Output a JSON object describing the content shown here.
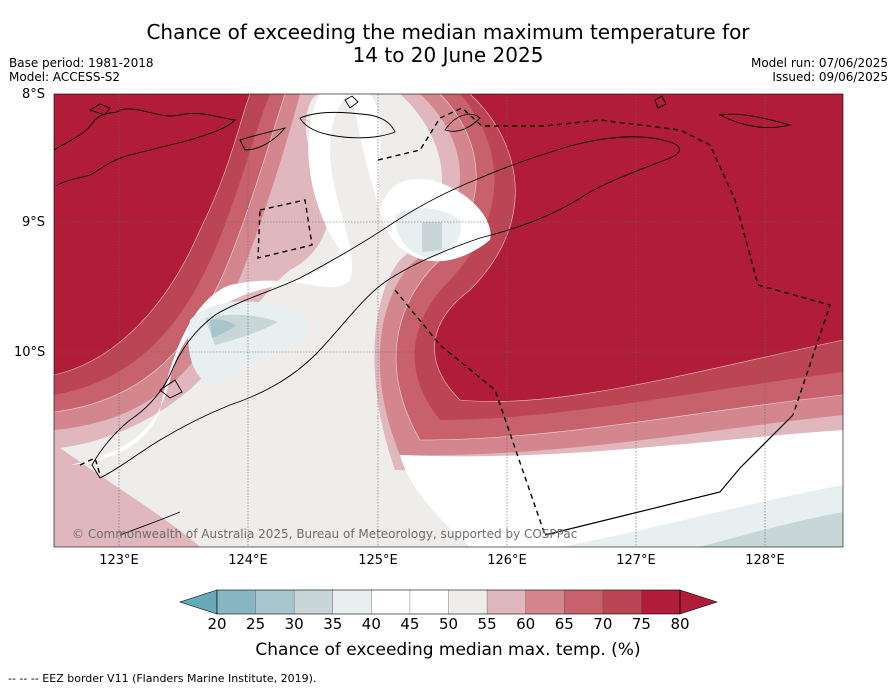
{
  "title_line1": "Chance of exceeding the median maximum temperature for",
  "title_line2": "14 to 20 June 2025",
  "base_period": "Base period: 1981-2018",
  "model": "Model: ACCESS-S2",
  "model_run": "Model run: 07/06/2025",
  "issued": "Issued: 09/06/2025",
  "latitude_labels": [
    "8°S",
    "9°S",
    "10°S"
  ],
  "longitude_labels": [
    "123°E",
    "124°E",
    "125°E",
    "126°E",
    "127°E",
    "128°E"
  ],
  "copyright": "© Commonwealth of Australia 2025, Bureau of Meteorology, supported by COSPPac",
  "colorbar": {
    "title": "Chance of exceeding median max. temp. (%)",
    "ticks": [
      "20",
      "25",
      "30",
      "35",
      "40",
      "45",
      "50",
      "55",
      "60",
      "65",
      "70",
      "75",
      "80"
    ],
    "colors": [
      "#66aab8",
      "#88b5c2",
      "#a7c6cc",
      "#c9d6d8",
      "#e8eff1",
      "#ffffff",
      "#ffffff",
      "#efedeb",
      "#e1b7be",
      "#d4868f",
      "#c7626d",
      "#bc4553",
      "#b11c38"
    ]
  },
  "footnote": "-- -- -- EEZ border V11 (Flanders Marine Institute, 2019).",
  "colors": {
    "high": "#b11c38",
    "neutral": "#ffffff",
    "low": "#66aab8"
  }
}
